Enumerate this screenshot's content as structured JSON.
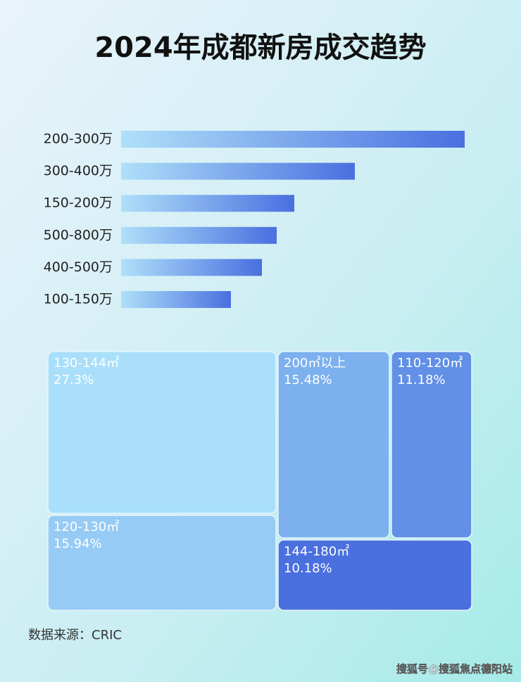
{
  "title": "2024年成都新房成交趋势",
  "chart_data": [
    {
      "type": "bar",
      "orientation": "horizontal",
      "categories": [
        "200-300万",
        "300-400万",
        "150-200万",
        "500-800万",
        "400-500万",
        "100-150万"
      ],
      "values": [
        488,
        332,
        246,
        221,
        200,
        156
      ],
      "color": "#4a6fe0"
    },
    {
      "type": "treemap",
      "categories": [
        "130-144㎡",
        "200㎡以上",
        "110-120㎡",
        "120-130㎡",
        "144-180㎡"
      ],
      "values": [
        27.3,
        15.48,
        11.18,
        15.94,
        10.18
      ],
      "value_labels": [
        "27.3%",
        "15.48%",
        "11.18%",
        "15.94%",
        "10.18%"
      ],
      "colors": [
        "#a9dffa",
        "#7cb0ee",
        "#6190e6",
        "#96cbf5",
        "#4a6fdf"
      ]
    }
  ],
  "source": "数据来源：CRIC",
  "watermark": "搜狐号@搜狐焦点德阳站"
}
